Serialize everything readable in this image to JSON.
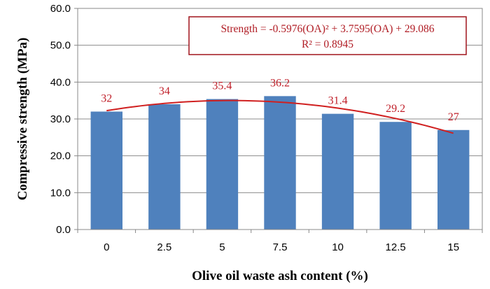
{
  "chart_data": {
    "type": "bar",
    "title": "",
    "xlabel": "Olive oil waste ash content (%)",
    "ylabel": "Compressive strength (MPa)",
    "categories": [
      "0",
      "2.5",
      "5",
      "7.5",
      "10",
      "12.5",
      "15"
    ],
    "x": [
      0,
      2.5,
      5,
      7.5,
      10,
      12.5,
      15
    ],
    "values": [
      32,
      34,
      35.4,
      36.2,
      31.4,
      29.2,
      27
    ],
    "data_labels": [
      "32",
      "34",
      "35.4",
      "36.2",
      "31.4",
      "29.2",
      "27"
    ],
    "ylim": [
      0,
      60
    ],
    "yticks": [
      "0.0",
      "10.0",
      "20.0",
      "30.0",
      "40.0",
      "50.0",
      "60.0"
    ],
    "grid": true,
    "bar_color": "#4f81bd",
    "trendline": {
      "type": "polynomial",
      "order": 2,
      "coefficients": [
        -0.5976,
        3.7595,
        29.086
      ],
      "color": "#d02020",
      "label_color": "#c0202a",
      "equation_line1": "Strength = -0.5976(OA)² + 3.7595(OA) + 29.086",
      "equation_line2": "R² = 0.8945"
    }
  }
}
